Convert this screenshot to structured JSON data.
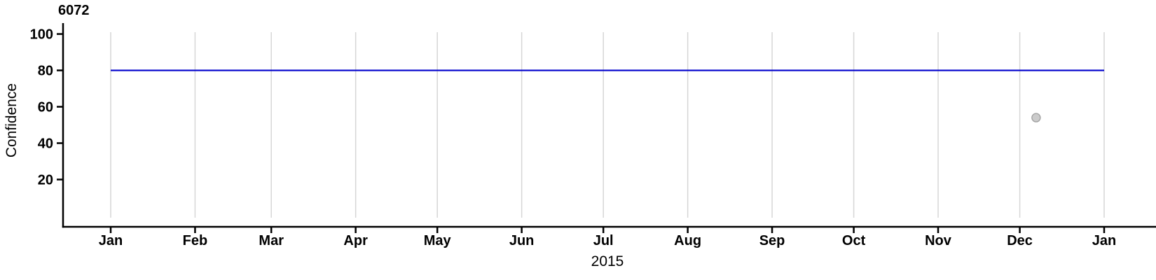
{
  "chart_data": {
    "type": "line",
    "title": "6072",
    "xlabel": "2015",
    "ylabel": "Confidence",
    "x_axis": {
      "unit": "days-from-2015-01-01",
      "range_days": [
        0,
        365
      ],
      "tick_labels": [
        "Jan",
        "Feb",
        "Mar",
        "Apr",
        "May",
        "Jun",
        "Jul",
        "Aug",
        "Sep",
        "Oct",
        "Nov",
        "Dec",
        "Jan"
      ],
      "tick_days": [
        0,
        31,
        59,
        90,
        120,
        151,
        181,
        212,
        243,
        273,
        304,
        334,
        365
      ],
      "grid": true
    },
    "y_axis": {
      "ticks": [
        20,
        40,
        60,
        80,
        100
      ],
      "range": [
        -6,
        106
      ],
      "grid": false
    },
    "series": [
      {
        "name": "confidence-line",
        "type": "line",
        "color": "#0000CC",
        "points": [
          {
            "day": 0,
            "value": 80
          },
          {
            "day": 365,
            "value": 80
          }
        ]
      }
    ],
    "markers": [
      {
        "name": "observation-point",
        "day": 340,
        "value": 54,
        "fill": "#CBCBCB",
        "stroke": "#A3A3A3"
      }
    ],
    "colors": {
      "axis": "#000000",
      "gridline": "#D6D6D6"
    },
    "legend": null
  }
}
